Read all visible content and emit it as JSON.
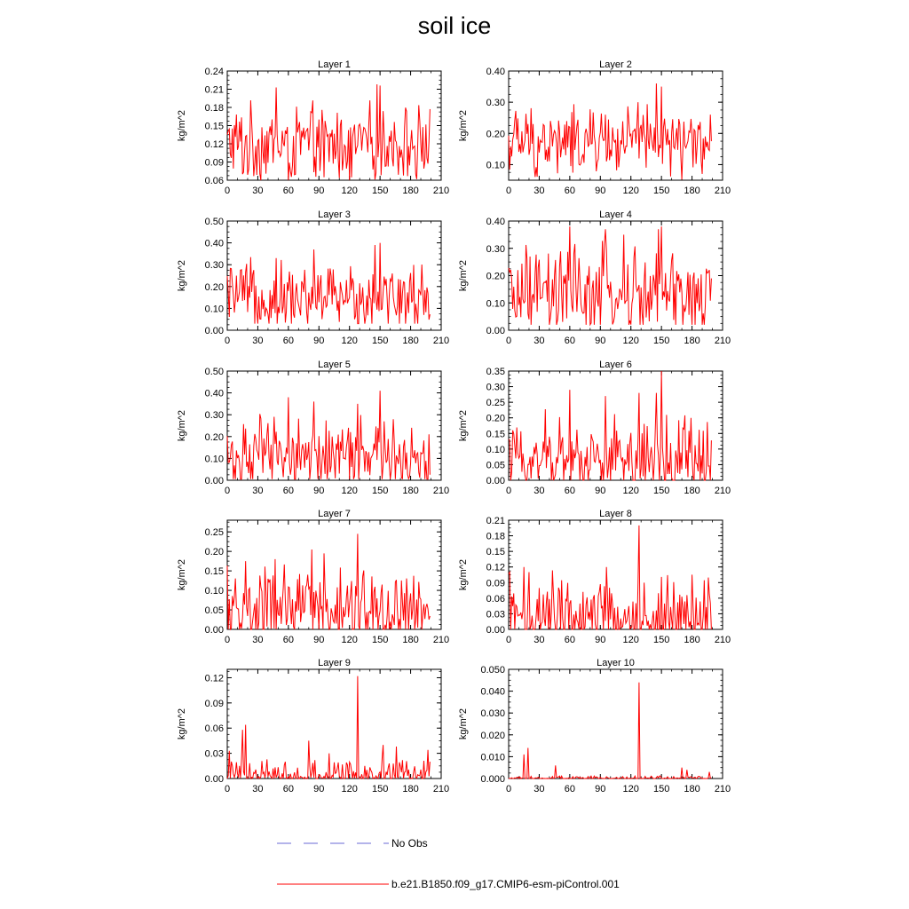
{
  "page": {
    "title": "soil ice"
  },
  "legend": [
    {
      "label": "No Obs",
      "color": "#6a6ad6",
      "style": "dashed"
    },
    {
      "label": "b.e21.B1850.f09_g17.CMIP6-esm-piControl.001",
      "color": "#ff0000",
      "style": "solid"
    }
  ],
  "chart_data": [
    {
      "type": "line",
      "title": "Layer 1",
      "ylabel": "kg/m^2",
      "xlim": [
        0,
        210
      ],
      "ylim": [
        0.06,
        0.24
      ],
      "xticks": [
        "0",
        "30",
        "60",
        "90",
        "120",
        "150",
        "180",
        "210"
      ],
      "yticks": [
        "0.06",
        "0.09",
        "0.12",
        "0.15",
        "0.18",
        "0.21",
        "0.24"
      ],
      "series": [
        {
          "color": "#ff0000",
          "n": 200,
          "base": 0.12,
          "amp": 0.05,
          "min_y": 0.06,
          "peaks": [
            [
              48,
              0.213
            ],
            [
              147,
              0.218
            ],
            [
              150,
              0.216
            ],
            [
              15,
              0.07
            ],
            [
              60,
              0.06
            ],
            [
              95,
              0.065
            ],
            [
              120,
              0.06
            ],
            [
              185,
              0.07
            ]
          ]
        }
      ]
    },
    {
      "type": "line",
      "title": "Layer 2",
      "ylabel": "kg/m^2",
      "xlim": [
        0,
        210
      ],
      "ylim": [
        0.05,
        0.4
      ],
      "xticks": [
        "0",
        "30",
        "60",
        "90",
        "120",
        "150",
        "180",
        "210"
      ],
      "yticks": [
        "0.10",
        "0.20",
        "0.30",
        "0.40"
      ],
      "series": [
        {
          "color": "#ff0000",
          "n": 200,
          "base": 0.17,
          "amp": 0.09,
          "min_y": 0.05,
          "peaks": [
            [
              145,
              0.36
            ],
            [
              150,
              0.35
            ],
            [
              127,
              0.3
            ],
            [
              95,
              0.26
            ],
            [
              190,
              0.07
            ]
          ]
        }
      ]
    },
    {
      "type": "line",
      "title": "Layer 3",
      "ylabel": "kg/m^2",
      "xlim": [
        0,
        210
      ],
      "ylim": [
        0.0,
        0.5
      ],
      "xticks": [
        "0",
        "30",
        "60",
        "90",
        "120",
        "150",
        "180",
        "210"
      ],
      "yticks": [
        "0.00",
        "0.10",
        "0.20",
        "0.30",
        "0.40",
        "0.50"
      ],
      "series": [
        {
          "color": "#ff0000",
          "n": 200,
          "base": 0.15,
          "amp": 0.13,
          "min_y": 0.03,
          "peaks": [
            [
              145,
              0.39
            ],
            [
              150,
              0.4
            ],
            [
              85,
              0.37
            ],
            [
              48,
              0.33
            ]
          ]
        }
      ]
    },
    {
      "type": "line",
      "title": "Layer 4",
      "ylabel": "kg/m^2",
      "xlim": [
        0,
        210
      ],
      "ylim": [
        0.0,
        0.4
      ],
      "xticks": [
        "0",
        "30",
        "60",
        "90",
        "120",
        "150",
        "180",
        "210"
      ],
      "yticks": [
        "0.00",
        "0.10",
        "0.20",
        "0.30",
        "0.40"
      ],
      "series": [
        {
          "color": "#ff0000",
          "n": 200,
          "base": 0.12,
          "amp": 0.15,
          "min_y": 0.02,
          "peaks": [
            [
              60,
              0.38
            ],
            [
              150,
              0.38
            ],
            [
              95,
              0.37
            ],
            [
              113,
              0.35
            ],
            [
              147,
              0.37
            ]
          ]
        }
      ]
    },
    {
      "type": "line",
      "title": "Layer 5",
      "ylabel": "kg/m^2",
      "xlim": [
        0,
        210
      ],
      "ylim": [
        0.0,
        0.5
      ],
      "xticks": [
        "0",
        "30",
        "60",
        "90",
        "120",
        "150",
        "180",
        "210"
      ],
      "yticks": [
        "0.00",
        "0.10",
        "0.20",
        "0.30",
        "0.40",
        "0.50"
      ],
      "series": [
        {
          "color": "#ff0000",
          "n": 200,
          "base": 0.11,
          "amp": 0.14,
          "min_y": 0.005,
          "peaks": [
            [
              150,
              0.41
            ],
            [
              60,
              0.38
            ],
            [
              85,
              0.36
            ],
            [
              128,
              0.35
            ]
          ]
        }
      ]
    },
    {
      "type": "line",
      "title": "Layer 6",
      "ylabel": "kg/m^2",
      "xlim": [
        0,
        210
      ],
      "ylim": [
        0.0,
        0.35
      ],
      "xticks": [
        "0",
        "30",
        "60",
        "90",
        "120",
        "150",
        "180",
        "210"
      ],
      "yticks": [
        "0.00",
        "0.05",
        "0.10",
        "0.15",
        "0.20",
        "0.25",
        "0.30",
        "0.35"
      ],
      "series": [
        {
          "color": "#ff0000",
          "n": 200,
          "base": 0.07,
          "amp": 0.11,
          "min_y": 0.0,
          "peaks": [
            [
              150,
              0.35
            ],
            [
              60,
              0.29
            ],
            [
              95,
              0.27
            ],
            [
              128,
              0.28
            ],
            [
              145,
              0.28
            ]
          ]
        }
      ]
    },
    {
      "type": "line",
      "title": "Layer 7",
      "ylabel": "kg/m^2",
      "xlim": [
        0,
        210
      ],
      "ylim": [
        0.0,
        0.28
      ],
      "xticks": [
        "0",
        "30",
        "60",
        "90",
        "120",
        "150",
        "180",
        "210"
      ],
      "yticks": [
        "0.00",
        "0.05",
        "0.10",
        "0.15",
        "0.20",
        "0.25"
      ],
      "series": [
        {
          "color": "#ff0000",
          "n": 200,
          "base": 0.045,
          "amp": 0.09,
          "min_y": 0.0,
          "peaks": [
            [
              128,
              0.245
            ],
            [
              83,
              0.205
            ],
            [
              95,
              0.195
            ],
            [
              18,
              0.175
            ],
            [
              47,
              0.18
            ]
          ]
        }
      ]
    },
    {
      "type": "line",
      "title": "Layer 8",
      "ylabel": "kg/m^2",
      "xlim": [
        0,
        210
      ],
      "ylim": [
        0.0,
        0.21
      ],
      "xticks": [
        "0",
        "30",
        "60",
        "90",
        "120",
        "150",
        "180",
        "210"
      ],
      "yticks": [
        "0.00",
        "0.03",
        "0.06",
        "0.09",
        "0.12",
        "0.15",
        "0.18",
        "0.21"
      ],
      "series": [
        {
          "color": "#ff0000",
          "n": 200,
          "base": 0.02,
          "amp": 0.07,
          "min_y": 0.0,
          "peaks": [
            [
              128,
              0.2
            ],
            [
              96,
              0.12
            ],
            [
              1,
              0.11
            ],
            [
              15,
              0.12
            ],
            [
              20,
              0.11
            ]
          ]
        }
      ]
    },
    {
      "type": "line",
      "title": "Layer 9",
      "ylabel": "kg/m^2",
      "xlim": [
        0,
        210
      ],
      "ylim": [
        0.0,
        0.13
      ],
      "xticks": [
        "0",
        "30",
        "60",
        "90",
        "120",
        "150",
        "180",
        "210"
      ],
      "yticks": [
        "0.00",
        "0.03",
        "0.06",
        "0.09",
        "0.12"
      ],
      "series": [
        {
          "color": "#ff0000",
          "n": 200,
          "base": 0.0,
          "amp": 0.012,
          "min_y": 0.0,
          "peaks": [
            [
              128,
              0.122
            ],
            [
              15,
              0.058
            ],
            [
              18,
              0.064
            ],
            [
              80,
              0.045
            ],
            [
              153,
              0.04
            ],
            [
              166,
              0.038
            ],
            [
              100,
              0.03
            ],
            [
              2,
              0.033
            ],
            [
              197,
              0.034
            ]
          ]
        }
      ]
    },
    {
      "type": "line",
      "title": "Layer 10",
      "ylabel": "kg/m^2",
      "xlim": [
        0,
        210
      ],
      "ylim": [
        0.0,
        0.05
      ],
      "xticks": [
        "0",
        "30",
        "60",
        "90",
        "120",
        "150",
        "180",
        "210"
      ],
      "yticks": [
        "0.000",
        "0.010",
        "0.020",
        "0.030",
        "0.040",
        "0.050"
      ],
      "series": [
        {
          "color": "#ff0000",
          "n": 200,
          "base": 0.0,
          "amp": 0.0006,
          "min_y": 0.0,
          "peaks": [
            [
              128,
              0.044
            ],
            [
              19,
              0.014
            ],
            [
              15,
              0.011
            ],
            [
              46,
              0.006
            ],
            [
              170,
              0.005
            ],
            [
              175,
              0.004
            ],
            [
              197,
              0.003
            ]
          ]
        }
      ]
    }
  ]
}
